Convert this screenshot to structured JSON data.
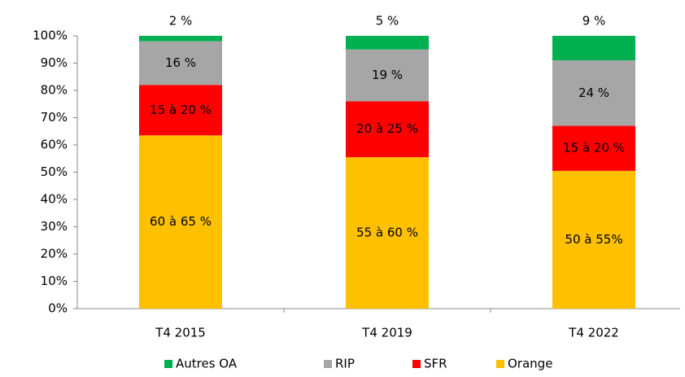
{
  "chart_data": {
    "type": "stacked_bar",
    "categories": [
      "T4 2015",
      "T4 2019",
      "T4 2022"
    ],
    "series": [
      {
        "name": "Autres OA",
        "color": "#00b050",
        "values": [
          2,
          5,
          9
        ],
        "value_labels": [
          "2 %",
          "5 %",
          "9 %"
        ]
      },
      {
        "name": "RIP",
        "color": "#a6a6a6",
        "values": [
          16,
          19,
          24
        ],
        "value_labels": [
          "16 %",
          "19 %",
          "24 %"
        ]
      },
      {
        "name": "SFR",
        "color": "#ff0000",
        "values": [
          18.5,
          20.5,
          16.5
        ],
        "value_labels": [
          "15 à 20 %",
          "20 à 25 %",
          "15 à 20 %"
        ]
      },
      {
        "name": "Orange",
        "color": "#ffc000",
        "values": [
          63.5,
          55.5,
          50.5
        ],
        "value_labels": [
          "60 à 65 %",
          "55 à 60 %",
          "50 à 55%"
        ]
      }
    ],
    "ylim": [
      0,
      100
    ],
    "yticks": [
      {
        "value": 0,
        "label": "0%"
      },
      {
        "value": 10,
        "label": "10%"
      },
      {
        "value": 20,
        "label": "20%"
      },
      {
        "value": 30,
        "label": "30%"
      },
      {
        "value": 40,
        "label": "40%"
      },
      {
        "value": 50,
        "label": "50%"
      },
      {
        "value": 60,
        "label": "60%"
      },
      {
        "value": 70,
        "label": "70%"
      },
      {
        "value": 80,
        "label": "80%"
      },
      {
        "value": 90,
        "label": "90%"
      },
      {
        "value": 100,
        "label": "100%"
      }
    ],
    "legend": "bottom"
  }
}
